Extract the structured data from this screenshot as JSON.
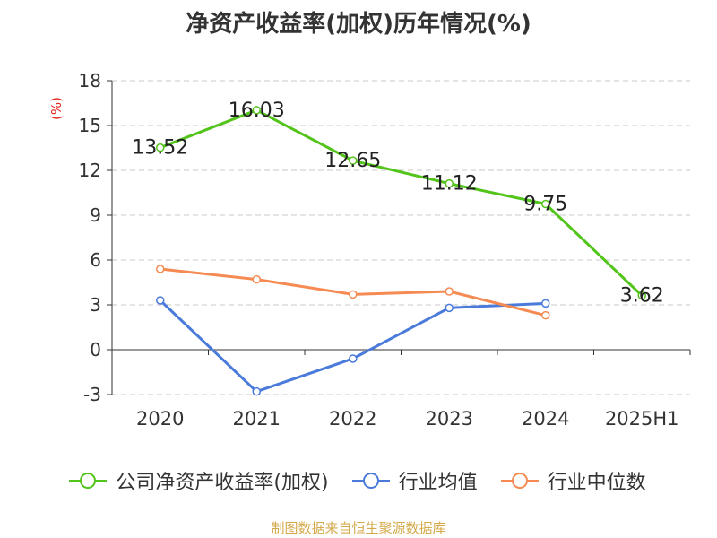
{
  "chart_data": {
    "type": "line",
    "title": "净资产收益率(加权)历年情况(%)",
    "ylabel": "(%)",
    "xlabel": "",
    "categories": [
      "2020",
      "2021",
      "2022",
      "2023",
      "2024",
      "2025H1"
    ],
    "yticks": [
      "18",
      "15",
      "12",
      "9",
      "6",
      "3",
      "0",
      "-3"
    ],
    "ylim": [
      -3,
      18
    ],
    "grid": true,
    "legend_position": "bottom",
    "series": [
      {
        "name": "公司净资产收益率(加权)",
        "color": "#52c41a",
        "values": [
          13.52,
          16.03,
          12.65,
          11.12,
          9.75,
          3.62
        ],
        "labels": [
          "13.52",
          "16.03",
          "12.65",
          "11.12",
          "9.75",
          "3.62"
        ]
      },
      {
        "name": "行业均值",
        "color": "#4a7bdb",
        "values": [
          3.3,
          -2.8,
          -0.6,
          2.8,
          3.1,
          null
        ]
      },
      {
        "name": "行业中位数",
        "color": "#f58a52",
        "values": [
          5.4,
          4.7,
          3.7,
          3.9,
          2.3,
          null
        ]
      }
    ]
  },
  "source": "制图数据来自恒生聚源数据库"
}
